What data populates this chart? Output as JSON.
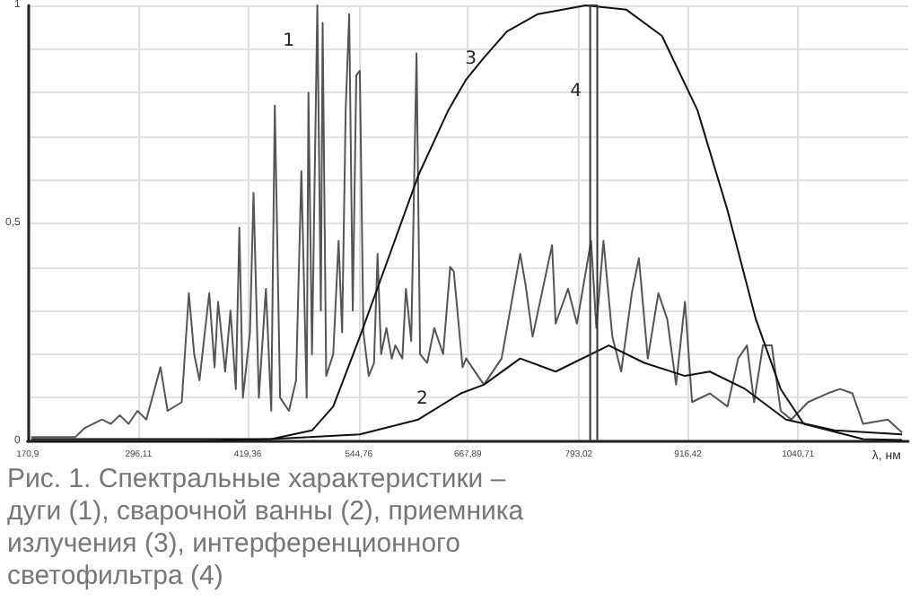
{
  "chart_data": {
    "type": "line",
    "xlabel": "λ, нм",
    "annotations": [
      "Рис. 1. Спектральные характеристики – дуги (1), сварочной ванны (2), приемника излучения (3), интерференционного светофильтра (4)"
    ],
    "xlim": [
      170.9,
      1165
    ],
    "xticks": [
      {
        "value": 170.9,
        "label": "170,9"
      },
      {
        "value": 296.11,
        "label": "296,11"
      },
      {
        "value": 419.36,
        "label": "419,36"
      },
      {
        "value": 544.76,
        "label": "544,76"
      },
      {
        "value": 667.89,
        "label": "667,89"
      },
      {
        "value": 793.02,
        "label": "793,02"
      },
      {
        "value": 916.42,
        "label": "916,42"
      },
      {
        "value": 1040.71,
        "label": "1040,71"
      }
    ],
    "ylim": [
      0,
      1
    ],
    "yticks": [
      0,
      {
        "value": 0.1,
        "label": null
      },
      {
        "value": 0.2,
        "label": null
      },
      {
        "value": 0.3,
        "label": null
      },
      {
        "value": 0.4,
        "label": null
      },
      {
        "value": 0.5,
        "label": "0,5"
      },
      {
        "value": 0.6,
        "label": null
      },
      {
        "value": 0.7,
        "label": null
      },
      {
        "value": 0.8,
        "label": null
      },
      {
        "value": 0.9,
        "label": null
      },
      1
    ],
    "grid": true,
    "marker": "none",
    "line_style": "solid",
    "legend": false,
    "series": [
      {
        "name": "1",
        "color": "#555555",
        "x": [
          175,
          225,
          235,
          255,
          265,
          275,
          285,
          295,
          305,
          321,
          329,
          345,
          353,
          359,
          365,
          376,
          382,
          386,
          394,
          400,
          406,
          410,
          414,
          422,
          426,
          432,
          440,
          446,
          450,
          456,
          466,
          474,
          480,
          486,
          488,
          492,
          498,
          502,
          504,
          508,
          516,
          522,
          526,
          530,
          534,
          538,
          542,
          546,
          550,
          556,
          562,
          566,
          570,
          576,
          582,
          586,
          594,
          598,
          604,
          610,
          614,
          622,
          630,
          640,
          648,
          652,
          662,
          666,
          686,
          706,
          727,
          733,
          741,
          763,
          767,
          781,
          791,
          807,
          813,
          821,
          831,
          841,
          853,
          861,
          871,
          883,
          893,
          903,
          913,
          921,
          941,
          961,
          973,
          983,
          991,
          1001,
          1011,
          1021,
          1033,
          1052,
          1074,
          1088,
          1102,
          1114,
          1142,
          1158
        ],
        "values": [
          0.01,
          0.01,
          0.03,
          0.05,
          0.04,
          0.06,
          0.04,
          0.07,
          0.05,
          0.17,
          0.07,
          0.09,
          0.34,
          0.2,
          0.14,
          0.34,
          0.17,
          0.32,
          0.16,
          0.3,
          0.12,
          0.49,
          0.1,
          0.25,
          0.57,
          0.1,
          0.35,
          0.07,
          0.77,
          0.1,
          0.07,
          0.14,
          0.62,
          0.1,
          0.8,
          0.2,
          1.0,
          0.3,
          0.96,
          0.15,
          0.2,
          0.46,
          0.25,
          0.76,
          0.98,
          0.3,
          0.84,
          0.85,
          0.25,
          0.15,
          0.18,
          0.43,
          0.2,
          0.26,
          0.19,
          0.22,
          0.19,
          0.35,
          0.23,
          0.89,
          0.2,
          0.18,
          0.26,
          0.2,
          0.4,
          0.39,
          0.17,
          0.19,
          0.13,
          0.19,
          0.43,
          0.36,
          0.24,
          0.45,
          0.27,
          0.35,
          0.27,
          0.46,
          0.26,
          0.46,
          0.24,
          0.16,
          0.34,
          0.42,
          0.19,
          0.34,
          0.28,
          0.13,
          0.32,
          0.09,
          0.11,
          0.08,
          0.19,
          0.22,
          0.09,
          0.22,
          0.22,
          0.07,
          0.05,
          0.09,
          0.11,
          0.12,
          0.11,
          0.04,
          0.05,
          0.02
        ]
      },
      {
        "name": "2",
        "color": "#111111",
        "x": [
          175,
          446,
          546,
          612,
          660,
          686,
          727,
          767,
          827,
          867,
          913,
          941,
          981,
          1027,
          1082,
          1158
        ],
        "values": [
          0.005,
          0.005,
          0.016,
          0.05,
          0.11,
          0.13,
          0.19,
          0.16,
          0.22,
          0.18,
          0.15,
          0.16,
          0.12,
          0.05,
          0.025,
          0.016
        ]
      },
      {
        "name": "3",
        "color": "#111111",
        "x": [
          175,
          365,
          446,
          492,
          516,
          546,
          580,
          612,
          646,
          666,
          686,
          712,
          747,
          801,
          847,
          887,
          927,
          961,
          993,
          1021,
          1047,
          1114,
          1158
        ],
        "values": [
          0,
          0,
          0.005,
          0.025,
          0.08,
          0.24,
          0.43,
          0.61,
          0.76,
          0.83,
          0.88,
          0.94,
          0.98,
          1.0,
          0.99,
          0.93,
          0.76,
          0.53,
          0.28,
          0.12,
          0.04,
          0.005,
          0.003
        ]
      },
      {
        "name": "4",
        "color": "#333333",
        "x": [
          806,
          806,
          814,
          814
        ],
        "values": [
          0,
          1,
          1,
          0
        ]
      }
    ]
  }
}
